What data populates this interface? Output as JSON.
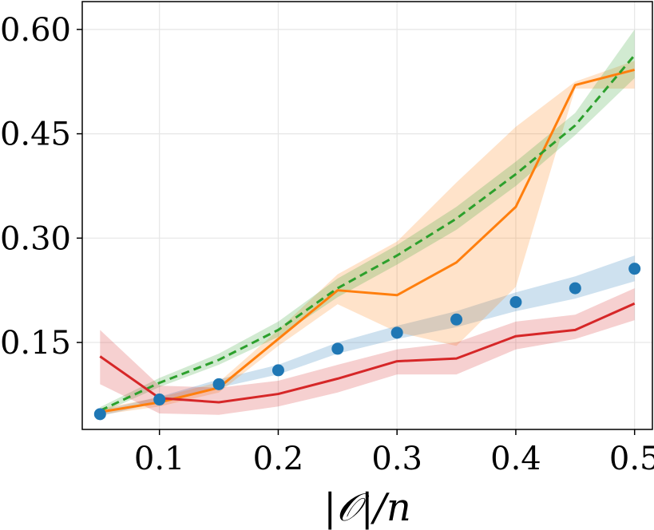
{
  "chart_data": {
    "type": "line",
    "title": "",
    "xlabel": "|𝒪|/n",
    "ylabel": "",
    "xlim": [
      0.035,
      0.515
    ],
    "ylim": [
      0.025,
      0.64
    ],
    "grid": true,
    "legend": "none",
    "xticks": [
      {
        "value": 0.1,
        "label": "0.1"
      },
      {
        "value": 0.2,
        "label": "0.2"
      },
      {
        "value": 0.3,
        "label": "0.3"
      },
      {
        "value": 0.4,
        "label": "0.4"
      },
      {
        "value": 0.5,
        "label": "0.5"
      }
    ],
    "yticks": [
      {
        "value": 0.15,
        "label": "0.15"
      },
      {
        "value": 0.3,
        "label": "0.30"
      },
      {
        "value": 0.45,
        "label": "0.45"
      },
      {
        "value": 0.6,
        "label": "0.60"
      }
    ],
    "x": [
      0.05,
      0.1,
      0.15,
      0.2,
      0.25,
      0.3,
      0.35,
      0.4,
      0.45,
      0.5
    ],
    "series": [
      {
        "color": "#1f77b4",
        "style": "markers",
        "values": [
          0.047,
          0.068,
          0.09,
          0.11,
          0.141,
          0.164,
          0.183,
          0.208,
          0.228,
          0.256
        ],
        "band_low": [
          0.044,
          0.064,
          0.085,
          0.104,
          0.134,
          0.155,
          0.172,
          0.195,
          0.213,
          0.238
        ],
        "band_high": [
          0.052,
          0.072,
          0.097,
          0.118,
          0.15,
          0.174,
          0.195,
          0.222,
          0.245,
          0.275
        ]
      },
      {
        "color": "#ff7f0e",
        "style": "solid",
        "values": [
          0.05,
          0.064,
          0.085,
          0.155,
          0.225,
          0.218,
          0.265,
          0.345,
          0.52,
          0.542
        ],
        "band_low": [
          0.046,
          0.058,
          0.078,
          0.145,
          0.205,
          0.165,
          0.145,
          0.23,
          0.515,
          0.515
        ],
        "band_high": [
          0.055,
          0.071,
          0.093,
          0.168,
          0.248,
          0.295,
          0.38,
          0.46,
          0.525,
          0.555
        ]
      },
      {
        "color": "#2ca02c",
        "style": "dashed",
        "values": [
          0.052,
          0.092,
          0.125,
          0.168,
          0.228,
          0.275,
          0.328,
          0.392,
          0.462,
          0.563
        ],
        "band_low": [
          0.048,
          0.086,
          0.118,
          0.158,
          0.215,
          0.262,
          0.312,
          0.375,
          0.448,
          0.53
        ],
        "band_high": [
          0.057,
          0.099,
          0.134,
          0.18,
          0.242,
          0.29,
          0.345,
          0.41,
          0.48,
          0.6
        ]
      },
      {
        "color": "#d62728",
        "style": "solid",
        "values": [
          0.13,
          0.07,
          0.064,
          0.076,
          0.098,
          0.123,
          0.127,
          0.159,
          0.168,
          0.206
        ],
        "band_low": [
          0.09,
          0.048,
          0.046,
          0.058,
          0.078,
          0.104,
          0.104,
          0.14,
          0.155,
          0.182
        ],
        "band_high": [
          0.168,
          0.088,
          0.085,
          0.095,
          0.118,
          0.14,
          0.15,
          0.18,
          0.19,
          0.228
        ]
      }
    ]
  }
}
